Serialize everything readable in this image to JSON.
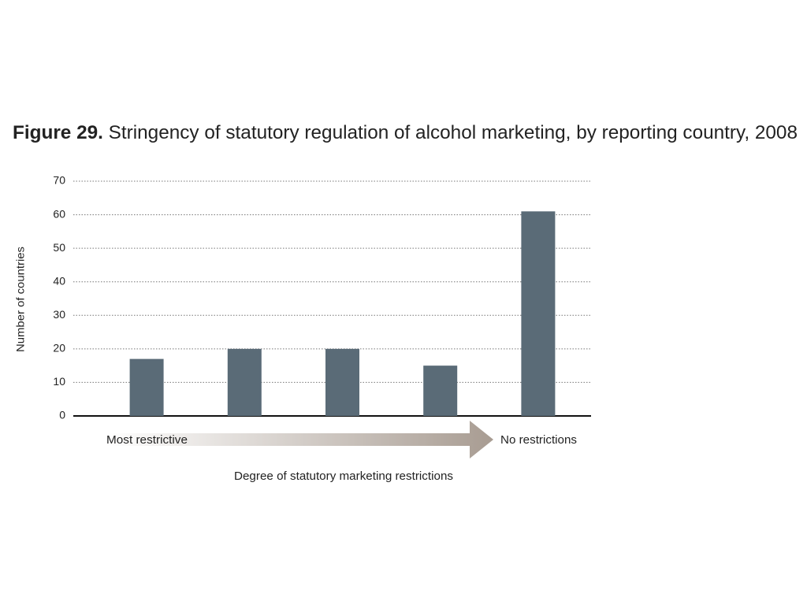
{
  "chart_data": {
    "type": "bar",
    "title_label": "Figure 29.",
    "title": "Stringency of statutory regulation of alcohol marketing, by reporting country, 2008",
    "y_label": "Number of countries",
    "x_label": "Degree of statutory marketing restrictions",
    "annotations": [
      "Most restrictive",
      "No restrictions"
    ],
    "categories": [
      null,
      null,
      null,
      null,
      null
    ],
    "values": [
      17,
      20,
      20,
      15,
      61
    ],
    "color": "#5a6b77",
    "ylim": [
      0,
      70
    ],
    "yticks": [
      0,
      10,
      20,
      30,
      40,
      50,
      60,
      70
    ],
    "grid": true
  }
}
